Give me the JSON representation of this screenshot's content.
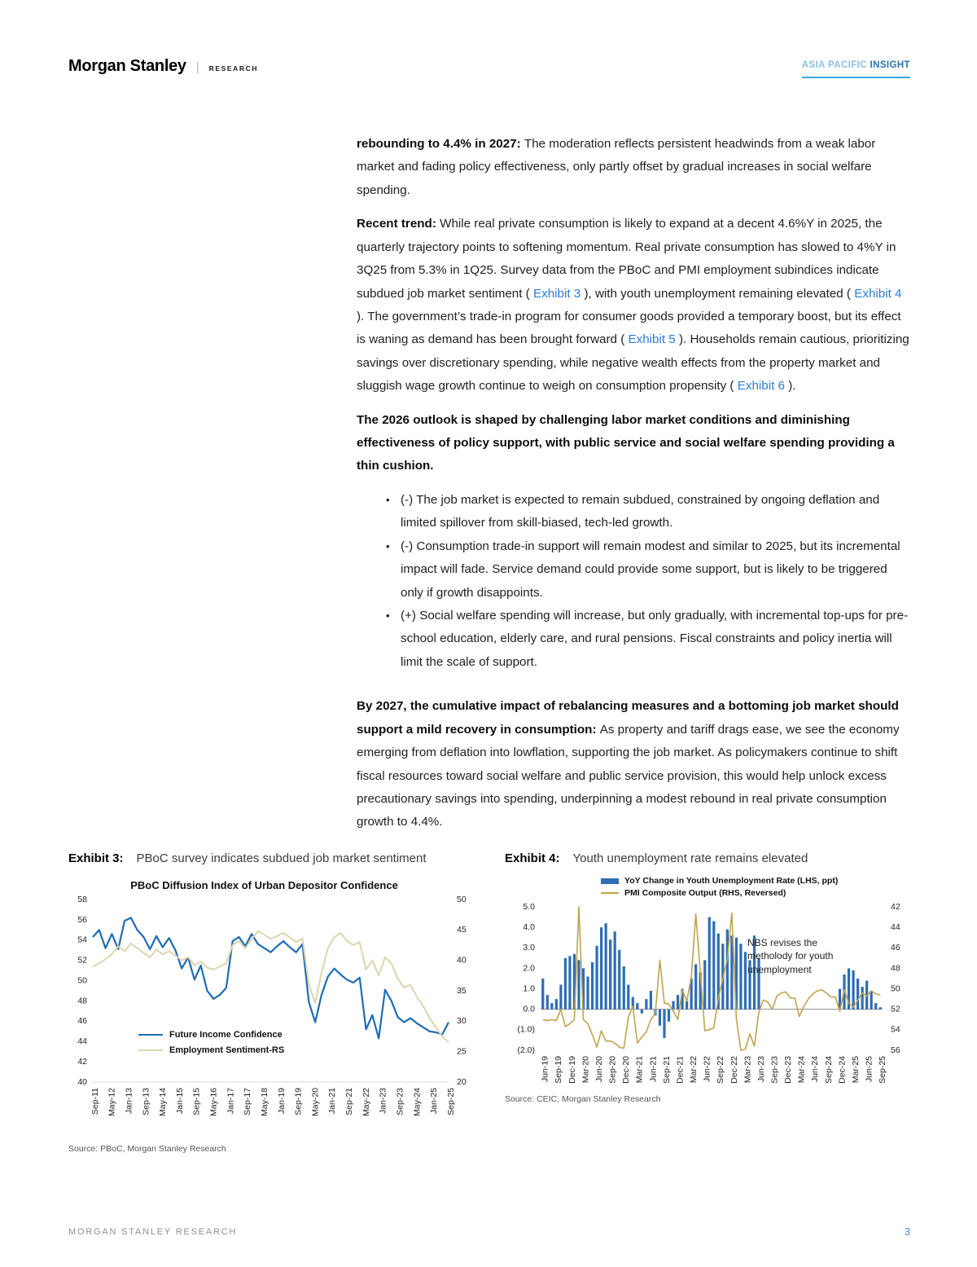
{
  "header": {
    "logo": "Morgan Stanley",
    "divider": "|",
    "research_label": "RESEARCH",
    "region_label": "ASIA PACIFIC",
    "insight_label": "INSIGHT",
    "accent_blue": "#35a9e0"
  },
  "body": {
    "paragraphs": [
      {
        "runs": [
          {
            "text": "rebounding to 4.4% in 2027: ",
            "bold": true
          },
          {
            "text": "The moderation reflects persistent headwinds from a weak labor market and fading policy effectiveness, only partly offset by gradual increases in social welfare spending."
          }
        ]
      },
      {
        "runs": [
          {
            "text": "Recent trend: ",
            "bold": true
          },
          {
            "text": "While real private consumption is likely to expand at a decent 4.6%Y in 2025, the quarterly trajectory points to softening momentum. Real private consumption has slowed to 4%Y in 3Q25 from 5.3% in 1Q25. Survey data from the PBoC and PMI employment subindices indicate subdued job market sentiment ( "
          },
          {
            "text": "Exhibit 3",
            "link": true
          },
          {
            "text": " ), with youth unemployment remaining elevated ( "
          },
          {
            "text": "Exhibit 4",
            "link": true
          },
          {
            "text": " ). The government’s trade-in program for consumer goods provided a temporary boost, but its effect is waning as demand has been brought forward ( "
          },
          {
            "text": "Exhibit 5",
            "link": true
          },
          {
            "text": " ). Households remain cautious, prioritizing savings over discretionary spending, while negative wealth effects from the property market and sluggish wage growth continue to weigh on consumption propensity ( "
          },
          {
            "text": "Exhibit 6",
            "link": true
          },
          {
            "text": " )."
          }
        ]
      },
      {
        "runs": [
          {
            "text": "The 2026 outlook is shaped by challenging labor market conditions and diminishing effectiveness of policy support, with public service and social welfare spending providing a thin cushion.",
            "bold": true
          }
        ]
      }
    ],
    "bullets": [
      "(-) The job market is expected to remain subdued, constrained by ongoing deflation and limited spillover from skill-biased, tech-led growth.",
      "(-) Consumption trade-in support will remain modest and similar to 2025, but its incremental impact will fade. Service demand could provide some support, but is likely to be triggered only if growth disappoints.",
      "(+) Social welfare spending will increase, but only gradually, with incremental top-ups for pre-school education, elderly care, and rural pensions. Fiscal constraints and policy inertia will limit the scale of support."
    ],
    "closing_paragraph": {
      "runs": [
        {
          "text": "By 2027, the cumulative impact of rebalancing measures and a bottoming job market should support a mild recovery in consumption: ",
          "bold": true
        },
        {
          "text": "As property and tariff drags ease, we see the economy emerging from deflation into lowflation, supporting the job market. As policymakers continue to shift fiscal resources toward social welfare and public service provision, this would help unlock excess precautionary savings into spending, underpinning a modest rebound in real private consumption growth to 4.4%."
        }
      ]
    }
  },
  "exhibit3": {
    "label": "Exhibit 3:",
    "title": "PBoC survey indicates subdued job market sentiment",
    "source": "Source: PBoC, Morgan Stanley Research"
  },
  "exhibit4": {
    "label": "Exhibit 4:",
    "title": "Youth unemployment rate remains elevated",
    "source": "Source: CEIC, Morgan Stanley Research"
  },
  "footer": {
    "left": "MORGAN STANLEY RESEARCH",
    "page_number": "3"
  },
  "chart_data": [
    {
      "type": "line",
      "title": "PBoC Diffusion Index of Urban Depositor Confidence",
      "grid": false,
      "legend_position": "inside-bottom-left",
      "x_tick_labels": [
        "Sep-11",
        "May-12",
        "Jan-13",
        "Sep-13",
        "May-14",
        "Jan-15",
        "Sep-15",
        "May-16",
        "Jan-17",
        "Sep-17",
        "May-18",
        "Jan-19",
        "Sep-19",
        "May-20",
        "Jan-21",
        "Sep-21",
        "May-22",
        "Jan-23",
        "Sep-23",
        "May-24",
        "Jan-25",
        "Sep-25"
      ],
      "left_axis": {
        "min": 40,
        "max": 58,
        "ticks": [
          58,
          56,
          54,
          52,
          50,
          48,
          46,
          44,
          42,
          40
        ]
      },
      "right_axis": {
        "min": 20,
        "max": 50,
        "ticks": [
          50,
          45,
          40,
          35,
          30,
          25,
          20
        ]
      },
      "series": [
        {
          "name": "Future Income Confidence",
          "axis": "left",
          "color": "#1f6cb4",
          "values": [
            54.3,
            55.0,
            53.2,
            54.6,
            53.1,
            55.9,
            56.2,
            55.0,
            54.3,
            53.1,
            54.4,
            53.3,
            54.2,
            53.0,
            51.2,
            52.3,
            50.1,
            51.5,
            49.0,
            48.2,
            48.6,
            49.3,
            53.9,
            54.3,
            53.4,
            54.6,
            53.6,
            53.2,
            52.8,
            53.4,
            53.9,
            53.3,
            52.8,
            53.6,
            47.9,
            45.9,
            48.6,
            50.4,
            51.2,
            50.6,
            50.1,
            49.8,
            50.3,
            45.2,
            46.6,
            44.3,
            49.1,
            48.0,
            46.4,
            45.9,
            46.3,
            45.8,
            45.4,
            45.0,
            44.9,
            44.7,
            45.9
          ]
        },
        {
          "name": "Employment Sentiment-RS",
          "axis": "right",
          "color": "#ddd5ae",
          "values": [
            39.0,
            39.5,
            40.2,
            41.0,
            42.3,
            41.5,
            42.8,
            42.0,
            41.2,
            40.5,
            41.8,
            41.0,
            41.5,
            40.8,
            40.0,
            40.5,
            39.2,
            39.8,
            38.8,
            38.5,
            39.0,
            39.5,
            42.5,
            43.2,
            42.0,
            43.5,
            44.8,
            44.2,
            43.5,
            44.0,
            44.5,
            43.8,
            43.0,
            43.6,
            36.0,
            33.0,
            38.0,
            42.0,
            43.8,
            44.5,
            43.2,
            42.5,
            43.0,
            38.5,
            40.0,
            37.5,
            40.5,
            39.5,
            37.0,
            35.5,
            36.0,
            34.0,
            32.5,
            30.5,
            29.0,
            27.5,
            26.5
          ]
        }
      ]
    },
    {
      "type": "bar+line",
      "title": "",
      "grid": false,
      "annotation": "NBS revises the metholody for youth unemployment",
      "x_tick_labels": [
        "Jun-19",
        "Sep-19",
        "Dec-19",
        "Mar-20",
        "Jun-20",
        "Sep-20",
        "Dec-20",
        "Mar-21",
        "Jun-21",
        "Sep-21",
        "Dec-21",
        "Mar-22",
        "Jun-22",
        "Sep-22",
        "Dec-22",
        "Mar-23",
        "Jun-23",
        "Sep-23",
        "Dec-23",
        "Mar-24",
        "Jun-24",
        "Sep-24",
        "Dec-24",
        "Mar-25",
        "Jun-25",
        "Sep-25"
      ],
      "left_axis": {
        "min": -2,
        "max": 5,
        "ticks": [
          5,
          4,
          3,
          2,
          1,
          0,
          -1,
          -2
        ]
      },
      "right_axis": {
        "min": 42,
        "max": 56,
        "reversed": true,
        "ticks": [
          42,
          44,
          46,
          48,
          50,
          52,
          54,
          56
        ]
      },
      "series": [
        {
          "name": "YoY Change in Youth Unemployment Rate (LHS, ppt)",
          "type": "bar",
          "axis": "left",
          "color": "#2e6db4",
          "values": [
            1.5,
            0.7,
            0.3,
            0.5,
            1.2,
            2.5,
            2.6,
            2.7,
            2.4,
            2.0,
            1.6,
            2.3,
            3.1,
            4.0,
            4.2,
            3.4,
            3.8,
            2.9,
            2.1,
            1.2,
            0.6,
            0.3,
            -0.2,
            0.5,
            0.9,
            -0.3,
            -0.8,
            -1.4,
            -0.6,
            0.4,
            0.7,
            1.0,
            0.4,
            1.5,
            2.2,
            1.8,
            2.4,
            4.5,
            4.3,
            3.7,
            3.2,
            3.9,
            3.6,
            3.5,
            3.2,
            2.8,
            2.4,
            3.6,
            2.5,
            null,
            null,
            null,
            null,
            null,
            null,
            null,
            null,
            null,
            null,
            null,
            null,
            null,
            null,
            null,
            null,
            null,
            1.0,
            1.7,
            2.0,
            1.9,
            1.5,
            1.1,
            1.4,
            0.9,
            0.3,
            0.1
          ]
        },
        {
          "name": "PMI Composite Output (RHS, Reversed)",
          "type": "line",
          "axis": "right",
          "color": "#bfa44e",
          "values": [
            53.0,
            53.1,
            53.0,
            53.1,
            52.0,
            53.7,
            53.4,
            53.0,
            42.0,
            53.0,
            53.4,
            54.5,
            55.7,
            54.1,
            55.1,
            55.1,
            55.3,
            55.7,
            55.8,
            52.8,
            51.7,
            55.3,
            54.7,
            54.2,
            53.0,
            52.4,
            47.2,
            51.4,
            51.5,
            52.2,
            53.0,
            50.1,
            51.2,
            48.8,
            42.7,
            48.4,
            54.1,
            54.0,
            53.8,
            50.9,
            49.0,
            47.1,
            42.6,
            52.9,
            56.4,
            55.9,
            54.4,
            55.6,
            52.3,
            51.1,
            51.3,
            52.0,
            50.7,
            50.4,
            50.3,
            50.9,
            50.9,
            52.7,
            51.7,
            51.0,
            50.5,
            50.2,
            50.1,
            50.4,
            50.8,
            50.8,
            52.2,
            50.1,
            51.4,
            51.8,
            51.1,
            50.4,
            50.7,
            50.2,
            50.5,
            50.6
          ]
        }
      ]
    }
  ]
}
